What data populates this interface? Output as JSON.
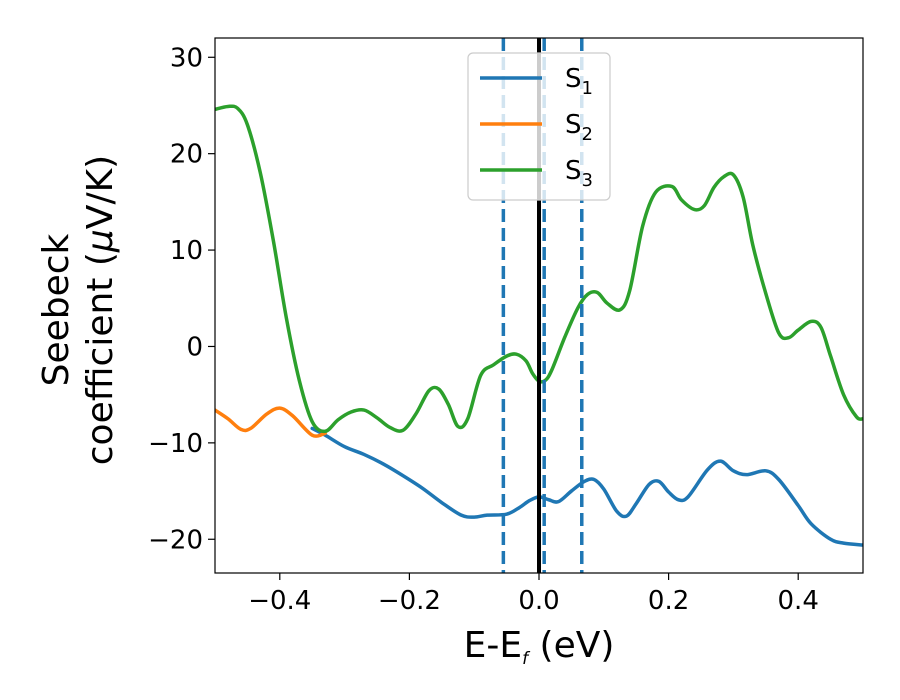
{
  "chart_data": {
    "type": "line",
    "xlabel_main": "E-E",
    "xlabel_sub": "f",
    "xlabel_unit": " (eV)",
    "ylabel_line1": "Seebeck",
    "ylabel_line2_prefix": "coefficient  (",
    "ylabel_mu": "μ",
    "ylabel_line2_suffix": "V/K)",
    "xlim": [
      -0.5,
      0.5
    ],
    "ylim": [
      -23.5,
      32
    ],
    "x_ticks": [
      {
        "value": -0.4,
        "label": "−0.4"
      },
      {
        "value": -0.2,
        "label": "−0.2"
      },
      {
        "value": 0.0,
        "label": "0.0"
      },
      {
        "value": 0.2,
        "label": "0.2"
      },
      {
        "value": 0.4,
        "label": "0.4"
      }
    ],
    "y_ticks": [
      {
        "value": -20,
        "label": "−20"
      },
      {
        "value": -10,
        "label": "−10"
      },
      {
        "value": 0,
        "label": "0"
      },
      {
        "value": 10,
        "label": "10"
      },
      {
        "value": 20,
        "label": "20"
      },
      {
        "value": 30,
        "label": "30"
      }
    ],
    "grid": false,
    "legend_position": "top-center",
    "vertical_lines": [
      {
        "x": -0.055,
        "style": "dashed",
        "color": "#1f77b4"
      },
      {
        "x": 0.008,
        "style": "dashed",
        "color": "#1f77b4"
      },
      {
        "x": 0.066,
        "style": "dashed",
        "color": "#1f77b4"
      },
      {
        "x": 0.0,
        "style": "solid",
        "color": "#000000"
      }
    ],
    "series": [
      {
        "name": "S",
        "sub": "1",
        "color": "#1f77b4",
        "x": [
          -0.35,
          -0.33,
          -0.3,
          -0.27,
          -0.24,
          -0.21,
          -0.18,
          -0.15,
          -0.12,
          -0.1,
          -0.08,
          -0.05,
          -0.03,
          -0.015,
          0.0,
          0.015,
          0.03,
          0.05,
          0.07,
          0.085,
          0.1,
          0.12,
          0.135,
          0.15,
          0.17,
          0.185,
          0.2,
          0.215,
          0.23,
          0.26,
          0.28,
          0.3,
          0.32,
          0.35,
          0.37,
          0.4,
          0.42,
          0.45,
          0.47,
          0.5
        ],
        "y": [
          -8.5,
          -9.2,
          -10.4,
          -11.2,
          -12.2,
          -13.4,
          -14.7,
          -16.2,
          -17.5,
          -17.7,
          -17.5,
          -17.4,
          -16.7,
          -16.0,
          -15.6,
          -15.9,
          -16.1,
          -15.0,
          -14.0,
          -13.8,
          -14.8,
          -17.1,
          -17.6,
          -16.3,
          -14.3,
          -14.0,
          -15.1,
          -15.9,
          -15.6,
          -12.8,
          -11.9,
          -12.9,
          -13.3,
          -12.9,
          -13.8,
          -16.5,
          -18.4,
          -20.0,
          -20.4,
          -20.6
        ]
      },
      {
        "name": "S",
        "sub": "2",
        "color": "#ff7f0e",
        "x": [
          -0.5,
          -0.48,
          -0.46,
          -0.445,
          -0.42,
          -0.4,
          -0.38,
          -0.35,
          -0.33
        ],
        "y": [
          -6.6,
          -7.5,
          -8.6,
          -8.5,
          -7.0,
          -6.4,
          -7.2,
          -9.2,
          -9.0
        ]
      },
      {
        "name": "S",
        "sub": "3",
        "color": "#2ca02c",
        "x": [
          -0.5,
          -0.48,
          -0.465,
          -0.45,
          -0.43,
          -0.41,
          -0.39,
          -0.37,
          -0.35,
          -0.33,
          -0.31,
          -0.29,
          -0.27,
          -0.25,
          -0.23,
          -0.21,
          -0.19,
          -0.17,
          -0.155,
          -0.14,
          -0.125,
          -0.11,
          -0.09,
          -0.07,
          -0.05,
          -0.035,
          -0.02,
          -0.01,
          0.0,
          0.01,
          0.02,
          0.04,
          0.06,
          0.075,
          0.09,
          0.105,
          0.125,
          0.14,
          0.16,
          0.18,
          0.205,
          0.22,
          0.24,
          0.255,
          0.27,
          0.285,
          0.3,
          0.315,
          0.33,
          0.35,
          0.37,
          0.385,
          0.4,
          0.42,
          0.435,
          0.45,
          0.47,
          0.49,
          0.5
        ],
        "y": [
          24.6,
          24.9,
          24.7,
          23.0,
          18.0,
          11.0,
          3.0,
          -3.5,
          -7.8,
          -8.8,
          -7.6,
          -6.8,
          -6.6,
          -7.4,
          -8.4,
          -8.7,
          -7.0,
          -4.6,
          -4.4,
          -6.0,
          -8.3,
          -7.5,
          -3.0,
          -1.9,
          -1.0,
          -0.8,
          -1.5,
          -2.8,
          -3.6,
          -3.5,
          -2.4,
          1.0,
          4.0,
          5.4,
          5.6,
          4.5,
          3.8,
          5.8,
          12.5,
          16.0,
          16.6,
          15.2,
          14.2,
          14.6,
          16.5,
          17.6,
          17.8,
          15.5,
          10.5,
          5.5,
          1.4,
          0.9,
          1.7,
          2.6,
          2.0,
          -1.0,
          -5.0,
          -7.3,
          -7.5
        ]
      }
    ]
  }
}
